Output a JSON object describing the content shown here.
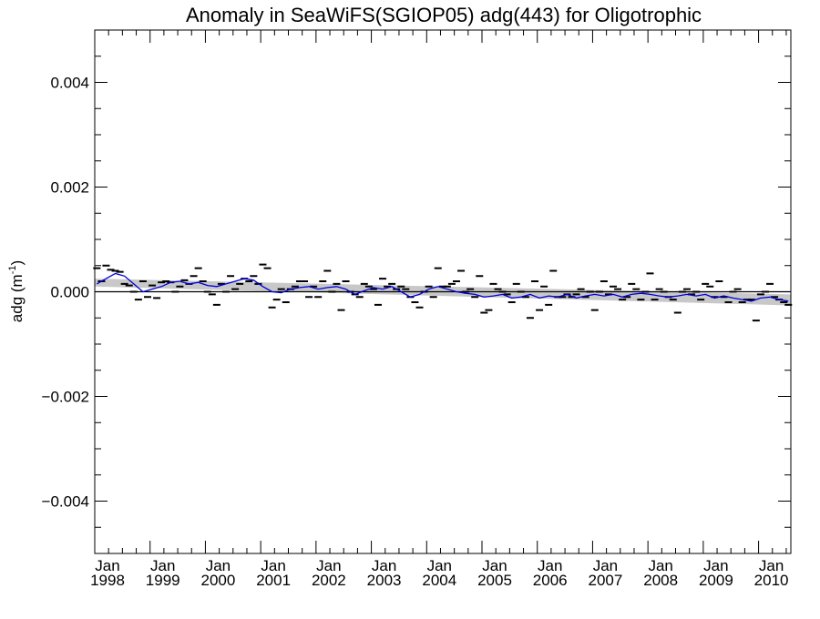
{
  "chart_data": {
    "type": "line",
    "title": "Anomaly in SeaWiFS(SGIOP05) adg(443) for Oligotrophic",
    "ylabel": {
      "base": "adg (m",
      "sup": "-1",
      "close": ")"
    },
    "xlabel": "",
    "xlim": [
      "1998-01-01",
      "2010-08-01"
    ],
    "ylim": [
      -0.005,
      0.005
    ],
    "y_ticks": [
      -0.004,
      -0.002,
      0.0,
      0.002,
      0.004
    ],
    "y_tick_labels": [
      "−0.004",
      "−0.002",
      "0.000",
      "0.002",
      "0.004"
    ],
    "x_ticks": [
      {
        "month": "Jan",
        "year": "1998",
        "date": "1998-01-01"
      },
      {
        "month": "Jan",
        "year": "1999",
        "date": "1999-01-01"
      },
      {
        "month": "Jan",
        "year": "2000",
        "date": "2000-01-01"
      },
      {
        "month": "Jan",
        "year": "2001",
        "date": "2001-01-01"
      },
      {
        "month": "Jan",
        "year": "2002",
        "date": "2002-01-01"
      },
      {
        "month": "Jan",
        "year": "2003",
        "date": "2003-01-01"
      },
      {
        "month": "Jan",
        "year": "2004",
        "date": "2004-01-01"
      },
      {
        "month": "Jan",
        "year": "2005",
        "date": "2005-01-01"
      },
      {
        "month": "Jan",
        "year": "2006",
        "date": "2006-01-01"
      },
      {
        "month": "Jan",
        "year": "2007",
        "date": "2007-01-01"
      },
      {
        "month": "Jan",
        "year": "2008",
        "date": "2008-01-01"
      },
      {
        "month": "Jan",
        "year": "2009",
        "date": "2009-01-01"
      },
      {
        "month": "Jan",
        "year": "2010",
        "date": "2010-01-01"
      }
    ],
    "zero_line": 0.0,
    "colors": {
      "monthly_anomaly": "#000000",
      "running_mean": "#0000dd",
      "trend_band": "#c8c8c8",
      "zero_line": "#000000"
    },
    "trend_band": {
      "x": [
        "1998-01-01",
        "2010-08-01"
      ],
      "upper": [
        0.00025,
        -5e-05
      ],
      "lower": [
        0.0001,
        -0.00026
      ]
    },
    "monthly_anomalies": {
      "marker": "dash",
      "x": [
        "1998-01",
        "1998-02",
        "1998-03",
        "1998-04",
        "1998-05",
        "1998-06",
        "1998-07",
        "1998-08",
        "1998-09",
        "1998-10",
        "1998-11",
        "1998-12",
        "1999-01",
        "1999-02",
        "1999-03",
        "1999-04",
        "1999-05",
        "1999-06",
        "1999-07",
        "1999-08",
        "1999-09",
        "1999-10",
        "1999-11",
        "1999-12",
        "2000-01",
        "2000-02",
        "2000-03",
        "2000-04",
        "2000-05",
        "2000-06",
        "2000-07",
        "2000-08",
        "2000-09",
        "2000-10",
        "2000-11",
        "2000-12",
        "2001-01",
        "2001-02",
        "2001-03",
        "2001-04",
        "2001-05",
        "2001-06",
        "2001-07",
        "2001-08",
        "2001-09",
        "2001-10",
        "2001-11",
        "2001-12",
        "2002-01",
        "2002-02",
        "2002-03",
        "2002-04",
        "2002-05",
        "2002-06",
        "2002-07",
        "2002-08",
        "2002-09",
        "2002-10",
        "2002-11",
        "2002-12",
        "2003-01",
        "2003-02",
        "2003-03",
        "2003-04",
        "2003-05",
        "2003-06",
        "2003-07",
        "2003-08",
        "2003-09",
        "2003-10",
        "2003-11",
        "2003-12",
        "2004-01",
        "2004-02",
        "2004-03",
        "2004-04",
        "2004-05",
        "2004-06",
        "2004-07",
        "2004-08",
        "2004-09",
        "2004-10",
        "2004-11",
        "2004-12",
        "2005-01",
        "2005-02",
        "2005-03",
        "2005-04",
        "2005-05",
        "2005-06",
        "2005-07",
        "2005-08",
        "2005-09",
        "2005-10",
        "2005-11",
        "2005-12",
        "2006-01",
        "2006-02",
        "2006-03",
        "2006-04",
        "2006-05",
        "2006-06",
        "2006-07",
        "2006-08",
        "2006-09",
        "2006-10",
        "2006-11",
        "2006-12",
        "2007-01",
        "2007-02",
        "2007-03",
        "2007-04",
        "2007-05",
        "2007-06",
        "2007-07",
        "2007-08",
        "2007-09",
        "2007-10",
        "2007-11",
        "2007-12",
        "2008-01",
        "2008-02",
        "2008-03",
        "2008-04",
        "2008-05",
        "2008-06",
        "2008-07",
        "2008-08",
        "2008-09",
        "2008-10",
        "2008-11",
        "2008-12",
        "2009-01",
        "2009-02",
        "2009-03",
        "2009-04",
        "2009-05",
        "2009-06",
        "2009-07",
        "2009-08",
        "2009-09",
        "2009-10",
        "2009-11",
        "2009-12",
        "2010-01",
        "2010-02",
        "2010-03",
        "2010-04",
        "2010-05",
        "2010-06",
        "2010-07"
      ],
      "y": [
        0.00045,
        0.0002,
        0.0005,
        0.00042,
        0.0004,
        0.00038,
        0.00015,
        0.00012,
        0.0,
        -0.00015,
        0.0002,
        -0.0001,
        0.00012,
        -0.00012,
        0.00018,
        0.0002,
        0.00018,
        0.0,
        0.0001,
        0.00022,
        0.00015,
        0.0003,
        0.00045,
        0.0002,
        0.0,
        -5e-05,
        -0.00025,
        0.00015,
        0.0,
        0.0003,
        5e-05,
        0.00015,
        0.00025,
        0.0002,
        0.0003,
        0.00015,
        0.00052,
        0.00045,
        -0.0003,
        -0.00015,
        5e-05,
        -0.0002,
        5e-05,
        0.0001,
        0.0002,
        0.0002,
        -0.0001,
        0.0001,
        -0.0001,
        0.0002,
        0.0004,
        0.0,
        0.00015,
        -0.00035,
        0.0002,
        0.0,
        -5e-05,
        -0.0001,
        0.00015,
        0.0001,
        5e-05,
        -0.00025,
        0.00025,
        0.0001,
        0.00015,
        5e-05,
        0.0001,
        5e-05,
        -0.0001,
        -0.0002,
        -0.0003,
        0.0,
        0.0001,
        -0.0001,
        0.00045,
        0.0001,
        0.0001,
        0.00015,
        0.0002,
        0.0004,
        0.0,
        5e-05,
        -0.0001,
        0.0003,
        -0.0004,
        -0.00035,
        0.00015,
        5e-05,
        0.0,
        -5e-05,
        -0.0002,
        0.00015,
        0.0,
        -0.0001,
        -0.0005,
        0.0002,
        -0.00035,
        0.0001,
        -0.00025,
        0.0004,
        -0.0001,
        -0.0001,
        -5e-05,
        -0.0001,
        -5e-05,
        5e-05,
        -0.0001,
        0.0,
        -0.00035,
        0.0,
        0.0002,
        -5e-05,
        0.0001,
        5e-05,
        -0.00015,
        -0.0001,
        0.00015,
        5e-05,
        -0.00015,
        0.0,
        0.00035,
        -0.00015,
        5e-05,
        0.0,
        -0.0001,
        -0.00015,
        -0.0004,
        0.0,
        5e-05,
        -5e-05,
        0.0,
        -0.00015,
        0.00015,
        0.0001,
        -0.0001,
        0.0002,
        -0.0001,
        -0.0002,
        0.0,
        5e-05,
        -0.0002,
        -0.00015,
        -0.00015,
        -0.00055,
        -5e-05,
        0.0,
        0.00015,
        -0.0001,
        -0.00015,
        -0.0002,
        -0.00025
      ]
    },
    "running_mean": {
      "x": [
        "1998-01",
        "1998-03",
        "1998-05",
        "1998-07",
        "1998-09",
        "1998-11",
        "1999-01",
        "1999-03",
        "1999-05",
        "1999-07",
        "1999-09",
        "1999-11",
        "2000-01",
        "2000-03",
        "2000-05",
        "2000-07",
        "2000-09",
        "2000-11",
        "2001-01",
        "2001-03",
        "2001-05",
        "2001-07",
        "2001-09",
        "2001-11",
        "2002-01",
        "2002-03",
        "2002-05",
        "2002-07",
        "2002-09",
        "2002-11",
        "2003-01",
        "2003-03",
        "2003-05",
        "2003-07",
        "2003-09",
        "2003-11",
        "2004-01",
        "2004-03",
        "2004-05",
        "2004-07",
        "2004-09",
        "2004-11",
        "2005-01",
        "2005-03",
        "2005-05",
        "2005-07",
        "2005-09",
        "2005-11",
        "2006-01",
        "2006-03",
        "2006-05",
        "2006-07",
        "2006-09",
        "2006-11",
        "2007-01",
        "2007-03",
        "2007-05",
        "2007-07",
        "2007-09",
        "2007-11",
        "2008-01",
        "2008-03",
        "2008-05",
        "2008-07",
        "2008-09",
        "2008-11",
        "2009-01",
        "2009-03",
        "2009-05",
        "2009-07",
        "2009-09",
        "2009-11",
        "2010-01",
        "2010-03",
        "2010-05",
        "2010-07"
      ],
      "y": [
        0.00015,
        0.00025,
        0.00035,
        0.0003,
        0.00015,
        0.0,
        5e-05,
        0.0001,
        0.00018,
        0.0002,
        0.00015,
        0.00018,
        0.00012,
        0.0001,
        0.00015,
        0.0002,
        0.00025,
        0.00022,
        0.0001,
        0.0,
        -2e-05,
        5e-05,
        8e-05,
        0.0001,
        5e-05,
        8e-05,
        0.0001,
        5e-05,
        -5e-05,
        2e-05,
        8e-05,
        5e-05,
        0.0001,
        0.0,
        -0.0001,
        -5e-05,
        5e-05,
        0.0001,
        5e-05,
        0.0,
        -3e-05,
        -5e-05,
        -0.0001,
        -8e-05,
        -5e-05,
        -0.00012,
        -0.0001,
        -5e-05,
        -0.00012,
        -8e-05,
        -0.0001,
        -5e-05,
        -0.00012,
        -8e-05,
        -5e-05,
        -8e-05,
        -5e-05,
        -0.0001,
        -5e-05,
        -3e-05,
        -5e-05,
        -8e-05,
        -0.0001,
        -8e-05,
        -5e-05,
        -8e-05,
        -5e-05,
        -0.00012,
        -8e-05,
        -0.00012,
        -0.00015,
        -0.00018,
        -0.00012,
        -0.0001,
        -0.00015,
        -0.00018
      ]
    }
  }
}
